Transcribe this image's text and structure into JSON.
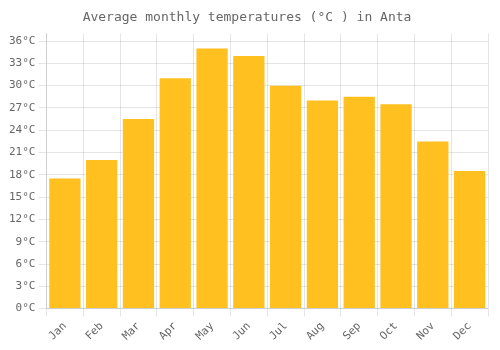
{
  "chart_data": {
    "type": "bar",
    "title": "Average monthly temperatures (°C ) in Anta",
    "categories": [
      "Jan",
      "Feb",
      "Mar",
      "Apr",
      "May",
      "Jun",
      "Jul",
      "Aug",
      "Sep",
      "Oct",
      "Nov",
      "Dec"
    ],
    "values": [
      17.5,
      20.0,
      25.5,
      31.0,
      35.0,
      34.0,
      30.0,
      28.0,
      28.5,
      27.5,
      22.5,
      18.5
    ],
    "color": "#FFC020",
    "ylim": [
      0,
      37
    ],
    "yticks": [
      {
        "value": 0,
        "label": "0°C"
      },
      {
        "value": 3,
        "label": "3°C"
      },
      {
        "value": 6,
        "label": "6°C"
      },
      {
        "value": 9,
        "label": "9°C"
      },
      {
        "value": 12,
        "label": "12°C"
      },
      {
        "value": 15,
        "label": "15°C"
      },
      {
        "value": 18,
        "label": "18°C"
      },
      {
        "value": 21,
        "label": "21°C"
      },
      {
        "value": 24,
        "label": "24°C"
      },
      {
        "value": 27,
        "label": "27°C"
      },
      {
        "value": 30,
        "label": "30°C"
      },
      {
        "value": 33,
        "label": "33°C"
      },
      {
        "value": 36,
        "label": "36°C"
      }
    ],
    "grid": true
  }
}
